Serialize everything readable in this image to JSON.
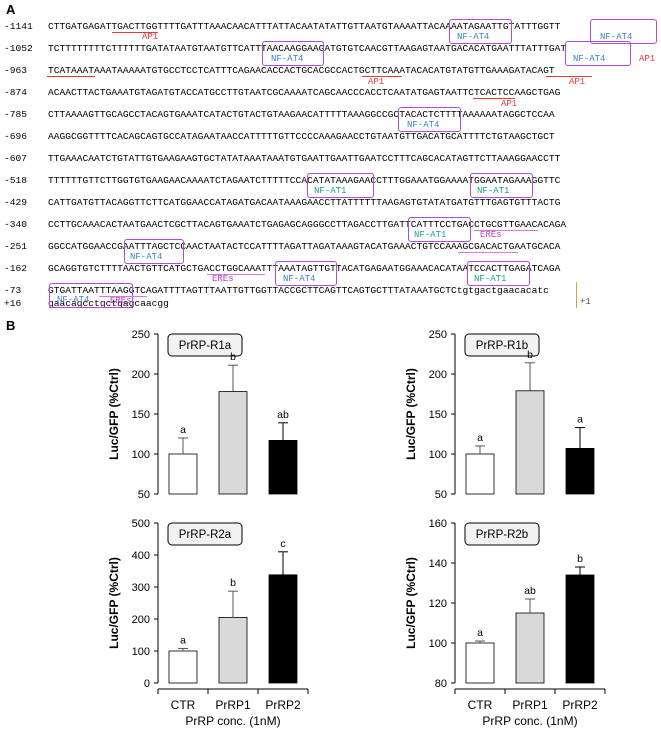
{
  "panel_a_label": "A",
  "panel_b_label": "B",
  "sequence": [
    {
      "num": "-1141",
      "seq": "CTTGATGAGATTGACTTGGTTTTGATTTAAACAACATTTATTACAATATATTGTTAATGTAAAATTACAAAATAGAATTGTATTTGGTT"
    },
    {
      "num": "-1052",
      "seq": "TCTTTTTTTTCTTTTTTGATATAATGTAATGTTCATTTAACAAGGAAGATGTGTCAACGTTAAGAGTAATGACACATGAATTTATTTGAT"
    },
    {
      "num": "-963",
      "seq": "TCATAAATAAATAAAAATGTGCCTCCTCATTTCAGAACACCACTGCACGCCACTGCTTCAAATACACATGTATGTTGAAAGATACAGT"
    },
    {
      "num": "-874",
      "seq": "ACAACTTACTGAAATGTAGATGTACCATGCCTTGTAATCGCAAAATCAGCAACCCACCTCAATATGAGTAATTCTCACTCCAAGCTGAG"
    },
    {
      "num": "-785",
      "seq": "CTTAAAAGTTGCAGCCTACAGTGAAATCATACTGTACTGTAAGAACATTTTTAAAGGCCGCTACACTCTTTTAAAAAATAGGCTCCAA"
    },
    {
      "num": "-696",
      "seq": "AAGGCGGTTTTCACAGCAGTGCCATAGAATAACCATTTTTGTTCCCCAAAGAACCTGTAATGTTGACATGCATTTTCTGTAAGCTGCT"
    },
    {
      "num": "-607",
      "seq": "TTGAAACAATCTGTATTGTGAAGAAGTGCTATATAAATAAATGTGAATTGAATTGAATCCTTTCAGCACATAGTTCTTAAAGGAACCTT"
    },
    {
      "num": "-518",
      "seq": "TTTTTTGTTCTTGGTGTGAAGAACAAAATCTAGAATCTTTTTCCACATATAAAGAACCTTTGGAAATGGAAAATGGAATAGAAAGGTTC"
    },
    {
      "num": "-429",
      "seq": "CATTGATGTTACAGGTTCTTCATGGAACCATAGATGACAATAAAGAACCTTATTTTTTAAGAGTGTATATGATGTTTGAGTGTTTACTG"
    },
    {
      "num": "-340",
      "seq": "CCTTGCAAACACTAATGAACTCGCTTACAGTGAAATCTGAGAGCAGGGCCTTAGACCTTGATTCATTTCCTGACCTGCGTTGAACACAGA"
    },
    {
      "num": "-251",
      "seq": "GGCCATGGAACCGAATTTAGCTCCAACTAATACTCCATTTTAGATTAGATAAAGTACATGAAACTGTCCAAAGCGACACTGAATGCACA"
    },
    {
      "num": "-162",
      "seq": "GCAGGTGTCTTTTAACTGTTCATGCTGACCTGGCAAATTTAAATAGTTGTTACATGAGAATGGAAACACATAATCCACTTGAGATCAGA"
    },
    {
      "num": "-73",
      "seq": "GTGATTAATTTAAGGTCAGATTTTAGTTTAATTGTTGGTTACCGCTTCAGTTCAGTGCTTTATAAATGCTCtgtgactgaacacatc"
    },
    {
      "num": "+16",
      "seq": "gaacagcctgctgagcaacgg"
    }
  ],
  "annotations": {
    "ap1": "AP1",
    "nfat4": "NF-AT4",
    "nfat1": "NF-AT1",
    "eres": "EREs",
    "tss": "+1"
  },
  "chart_data": [
    {
      "type": "bar",
      "title": "PrRP-R1a",
      "categories": [
        "CTR",
        "PrRP1",
        "PrRP2"
      ],
      "values": [
        100,
        178,
        117
      ],
      "errors": [
        20,
        33,
        22
      ],
      "letters": [
        "a",
        "b",
        "ab"
      ],
      "ylabel": "Luc/GFP (%Ctrl)",
      "ylim": [
        50,
        250
      ],
      "yticks": [
        50,
        100,
        150,
        200,
        250
      ]
    },
    {
      "type": "bar",
      "title": "PrRP-R1b",
      "categories": [
        "CTR",
        "PrRP1",
        "PrRP2"
      ],
      "values": [
        100,
        179,
        107
      ],
      "errors": [
        10,
        35,
        26
      ],
      "letters": [
        "a",
        "b",
        "a"
      ],
      "ylabel": "Luc/GFP (%Ctrl)",
      "ylim": [
        50,
        250
      ],
      "yticks": [
        50,
        100,
        150,
        200,
        250
      ]
    },
    {
      "type": "bar",
      "title": "PrRP-R2a",
      "categories": [
        "CTR",
        "PrRP1",
        "PrRP2"
      ],
      "values": [
        100,
        205,
        338
      ],
      "errors": [
        8,
        82,
        72
      ],
      "letters": [
        "a",
        "b",
        "c"
      ],
      "ylabel": "Luc/GFP (%Ctrl)",
      "ylim": [
        0,
        500
      ],
      "yticks": [
        0,
        100,
        200,
        300,
        400,
        500
      ]
    },
    {
      "type": "bar",
      "title": "PrRP-R2b",
      "categories": [
        "CTR",
        "PrRP1",
        "PrRP2"
      ],
      "values": [
        100,
        115,
        134
      ],
      "errors": [
        1,
        7,
        4
      ],
      "letters": [
        "a",
        "ab",
        "b"
      ],
      "ylabel": "Luc/GFP (%Ctrl)",
      "ylim": [
        80,
        160
      ],
      "yticks": [
        80,
        100,
        120,
        140,
        160
      ]
    }
  ],
  "xaxis_title": "PrRP conc. (1nM)",
  "bar_colors": [
    "#ffffff",
    "#d9d9d9",
    "#000000"
  ]
}
